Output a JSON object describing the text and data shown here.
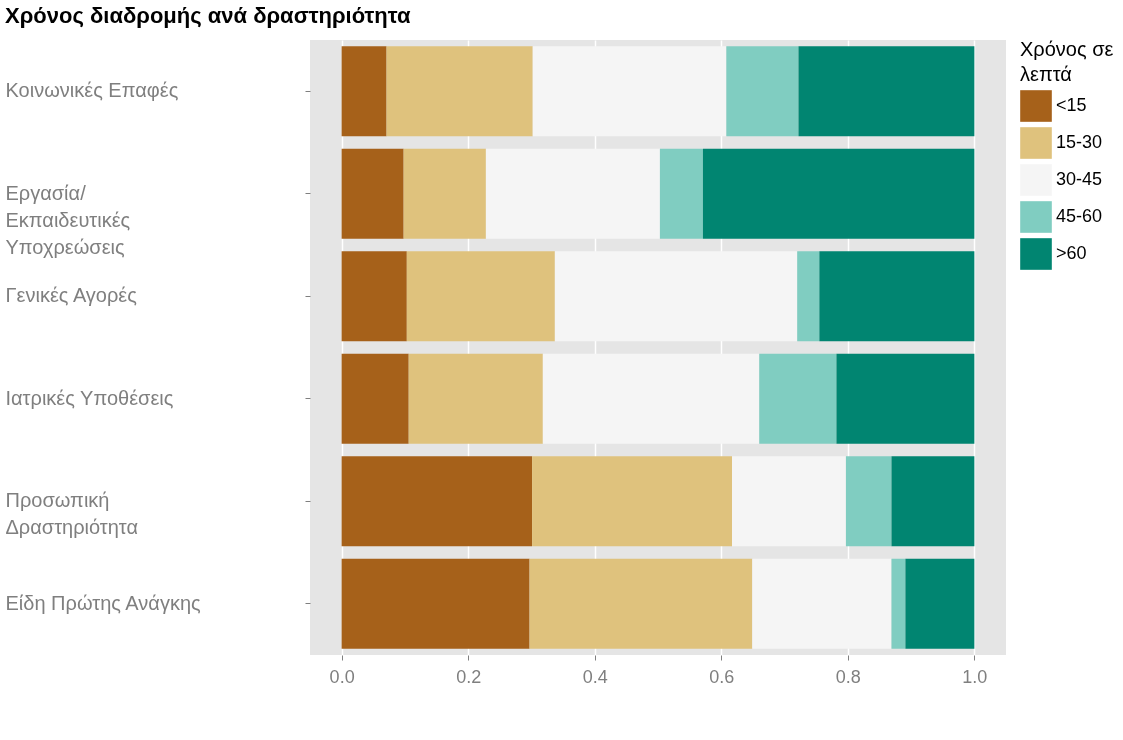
{
  "chart_data": {
    "type": "bar",
    "orientation": "horizontal",
    "stacked": true,
    "title": "Χρόνος διαδρομής ανά δραστηριότητα",
    "legend_title": "Χρόνος σε\nλεπτά",
    "legend": "right",
    "grid": "x",
    "categories": [
      "Κοινωνικές Επαφές",
      "Εργασία/\nΕκπαιδευτικές\nΥποχρεώσεις",
      "Γενικές Αγορές",
      "Ιατρικές Υποθέσεις",
      "Προσωπική\nΔραστηριότητα",
      "Είδη Πρώτης Ανάγκης"
    ],
    "series": [
      {
        "name": "<15",
        "color": "#a6611a",
        "values": [
          0.071,
          0.098,
          0.103,
          0.106,
          0.301,
          0.297
        ]
      },
      {
        "name": "15-30",
        "color": "#dfc27d",
        "values": [
          0.231,
          0.13,
          0.234,
          0.212,
          0.316,
          0.352
        ]
      },
      {
        "name": "30-45",
        "color": "#f5f5f5",
        "values": [
          0.306,
          0.275,
          0.383,
          0.342,
          0.18,
          0.22
        ]
      },
      {
        "name": "45-60",
        "color": "#80cdc1",
        "values": [
          0.114,
          0.068,
          0.035,
          0.122,
          0.072,
          0.022
        ]
      },
      {
        "name": ">60",
        "color": "#018571",
        "values": [
          0.278,
          0.429,
          0.245,
          0.218,
          0.131,
          0.109
        ]
      }
    ],
    "xlim": [
      -0.05,
      1.05
    ],
    "xticks": [
      {
        "value": 0,
        "label": "0.0"
      },
      {
        "value": 0.2,
        "label": "0.2"
      },
      {
        "value": 0.4,
        "label": "0.4"
      },
      {
        "value": 0.6,
        "label": "0.6"
      },
      {
        "value": 0.8,
        "label": "0.8"
      },
      {
        "value": 1,
        "label": "1.0"
      }
    ]
  }
}
